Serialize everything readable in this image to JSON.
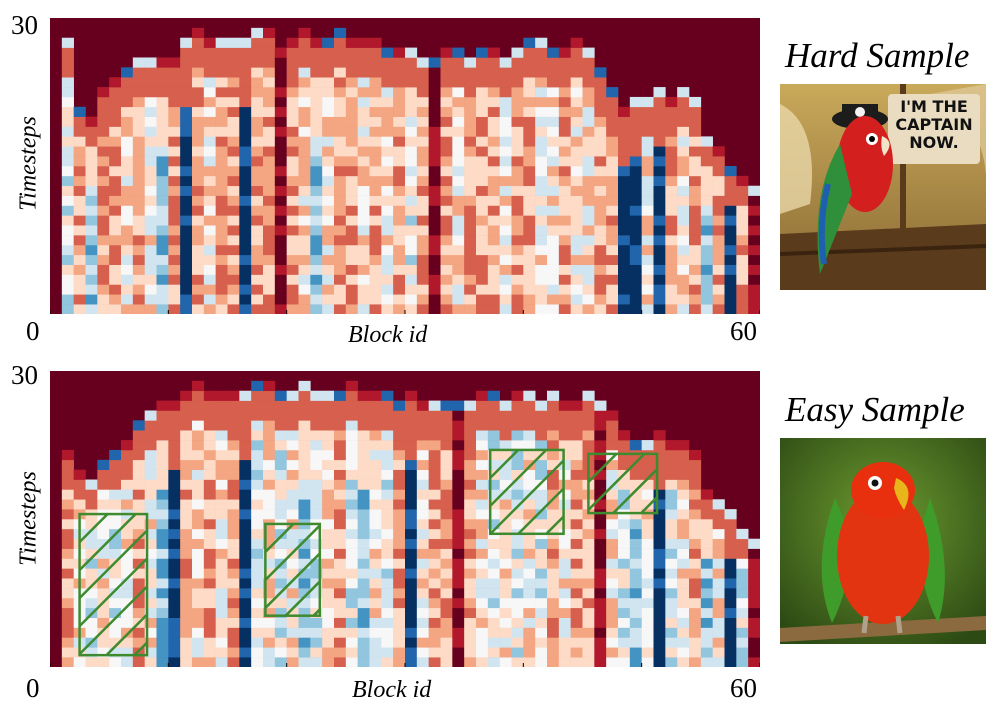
{
  "chart_data": [
    {
      "type": "heatmap",
      "title": "",
      "xlabel": "Block id",
      "ylabel": "Timesteps",
      "x_tick_labels": {
        "min": "0",
        "max": "60"
      },
      "y_tick_labels": {
        "max": "30"
      },
      "xlim": [
        0,
        60
      ],
      "ylim": [
        0,
        30
      ],
      "colormap": [
        "#053061",
        "#2166ac",
        "#4393c3",
        "#92c5de",
        "#d1e5f0",
        "#f7f7f7",
        "#fddbc7",
        "#f4a582",
        "#d6604d",
        "#b2182b",
        "#67001f"
      ],
      "columns": [
        {
          "x": 1,
          "top": 27,
          "profile": "cool"
        },
        {
          "x": 2,
          "top": 20,
          "profile": "warm"
        },
        {
          "x": 3,
          "top": 19,
          "profile": "blue"
        },
        {
          "x": 4,
          "top": 22,
          "profile": "warm"
        },
        {
          "x": 5,
          "top": 23,
          "profile": "warm"
        },
        {
          "x": 6,
          "top": 24,
          "profile": "pale"
        },
        {
          "x": 7,
          "top": 25,
          "profile": "warm"
        },
        {
          "x": 8,
          "top": 25,
          "profile": "pale"
        },
        {
          "x": 9,
          "top": 25,
          "profile": "blue"
        },
        {
          "x": 10,
          "top": 25,
          "profile": "warm"
        },
        {
          "x": 11,
          "top": 27,
          "profile": "dark"
        },
        {
          "x": 12,
          "top": 28,
          "profile": "warm"
        },
        {
          "x": 13,
          "top": 27,
          "profile": "pale"
        },
        {
          "x": 14,
          "top": 27,
          "profile": "warm"
        },
        {
          "x": 15,
          "top": 27,
          "profile": "warm"
        },
        {
          "x": 16,
          "top": 27,
          "profile": "dark"
        },
        {
          "x": 17,
          "top": 28,
          "profile": "warm"
        },
        {
          "x": 18,
          "top": 28,
          "profile": "warm"
        },
        {
          "x": 19,
          "top": 26,
          "profile": "red"
        },
        {
          "x": 20,
          "top": 27,
          "profile": "warm"
        },
        {
          "x": 21,
          "top": 28,
          "profile": "pale"
        },
        {
          "x": 22,
          "top": 27,
          "profile": "blue"
        },
        {
          "x": 23,
          "top": 27,
          "profile": "pale"
        },
        {
          "x": 24,
          "top": 28,
          "profile": "warm"
        },
        {
          "x": 25,
          "top": 27,
          "profile": "warm"
        },
        {
          "x": 26,
          "top": 27,
          "profile": "pale"
        },
        {
          "x": 27,
          "top": 27,
          "profile": "warm"
        },
        {
          "x": 28,
          "top": 26,
          "profile": "pale"
        },
        {
          "x": 29,
          "top": 26,
          "profile": "warm"
        },
        {
          "x": 30,
          "top": 26,
          "profile": "cool"
        },
        {
          "x": 31,
          "top": 25,
          "profile": "warm"
        },
        {
          "x": 32,
          "top": 25,
          "profile": "red"
        },
        {
          "x": 33,
          "top": 26,
          "profile": "warm"
        },
        {
          "x": 34,
          "top": 26,
          "profile": "pale"
        },
        {
          "x": 35,
          "top": 25,
          "profile": "warm"
        },
        {
          "x": 36,
          "top": 26,
          "profile": "warm"
        },
        {
          "x": 37,
          "top": 26,
          "profile": "warm"
        },
        {
          "x": 38,
          "top": 25,
          "profile": "pale"
        },
        {
          "x": 39,
          "top": 26,
          "profile": "warm"
        },
        {
          "x": 40,
          "top": 27,
          "profile": "warm"
        },
        {
          "x": 41,
          "top": 27,
          "profile": "pale"
        },
        {
          "x": 42,
          "top": 26,
          "profile": "pale"
        },
        {
          "x": 43,
          "top": 26,
          "profile": "warm"
        },
        {
          "x": 44,
          "top": 27,
          "profile": "pale"
        },
        {
          "x": 45,
          "top": 26,
          "profile": "pale"
        },
        {
          "x": 46,
          "top": 24,
          "profile": "warm"
        },
        {
          "x": 47,
          "top": 22,
          "profile": "warm"
        },
        {
          "x": 48,
          "top": 20,
          "profile": "dark"
        },
        {
          "x": 49,
          "top": 21,
          "profile": "dark"
        },
        {
          "x": 50,
          "top": 21,
          "profile": "pale"
        },
        {
          "x": 51,
          "top": 22,
          "profile": "dark"
        },
        {
          "x": 52,
          "top": 21,
          "profile": "warm"
        },
        {
          "x": 53,
          "top": 22,
          "profile": "pale"
        },
        {
          "x": 54,
          "top": 21,
          "profile": "warm"
        },
        {
          "x": 55,
          "top": 17,
          "profile": "blue"
        },
        {
          "x": 56,
          "top": 16,
          "profile": "warm"
        },
        {
          "x": 57,
          "top": 14,
          "profile": "dark"
        },
        {
          "x": 58,
          "top": 13,
          "profile": "warm"
        },
        {
          "x": 59,
          "top": 12,
          "profile": "red"
        }
      ],
      "highlight_regions": []
    },
    {
      "type": "heatmap",
      "title": "",
      "xlabel": "Block id",
      "ylabel": "Timesteps",
      "x_tick_labels": {
        "min": "0",
        "max": "60"
      },
      "y_tick_labels": {
        "max": "30"
      },
      "xlim": [
        0,
        60
      ],
      "ylim": [
        0,
        30
      ],
      "colormap": [
        "#053061",
        "#2166ac",
        "#4393c3",
        "#92c5de",
        "#d1e5f0",
        "#f7f7f7",
        "#fddbc7",
        "#f4a582",
        "#d6604d",
        "#b2182b",
        "#67001f"
      ],
      "columns": [
        {
          "x": 1,
          "top": 21,
          "profile": "warm"
        },
        {
          "x": 2,
          "top": 19,
          "profile": "pale"
        },
        {
          "x": 3,
          "top": 18,
          "profile": "cool"
        },
        {
          "x": 4,
          "top": 20,
          "profile": "pale"
        },
        {
          "x": 5,
          "top": 21,
          "profile": "cool"
        },
        {
          "x": 6,
          "top": 22,
          "profile": "pale"
        },
        {
          "x": 7,
          "top": 24,
          "profile": "warm"
        },
        {
          "x": 8,
          "top": 25,
          "profile": "pale"
        },
        {
          "x": 9,
          "top": 26,
          "profile": "blue"
        },
        {
          "x": 10,
          "top": 26,
          "profile": "dark"
        },
        {
          "x": 11,
          "top": 27,
          "profile": "warm"
        },
        {
          "x": 12,
          "top": 28,
          "profile": "pale"
        },
        {
          "x": 13,
          "top": 27,
          "profile": "warm"
        },
        {
          "x": 14,
          "top": 27,
          "profile": "pale"
        },
        {
          "x": 15,
          "top": 27,
          "profile": "warm"
        },
        {
          "x": 16,
          "top": 27,
          "profile": "dark"
        },
        {
          "x": 17,
          "top": 28,
          "profile": "cool"
        },
        {
          "x": 18,
          "top": 28,
          "profile": "pale"
        },
        {
          "x": 19,
          "top": 27,
          "profile": "cool"
        },
        {
          "x": 20,
          "top": 27,
          "profile": "pale"
        },
        {
          "x": 21,
          "top": 28,
          "profile": "blue"
        },
        {
          "x": 22,
          "top": 27,
          "profile": "cool"
        },
        {
          "x": 23,
          "top": 27,
          "profile": "pale"
        },
        {
          "x": 24,
          "top": 27,
          "profile": "warm"
        },
        {
          "x": 25,
          "top": 28,
          "profile": "cool"
        },
        {
          "x": 26,
          "top": 27,
          "profile": "blue"
        },
        {
          "x": 27,
          "top": 27,
          "profile": "pale"
        },
        {
          "x": 28,
          "top": 27,
          "profile": "cool"
        },
        {
          "x": 29,
          "top": 26,
          "profile": "warm"
        },
        {
          "x": 30,
          "top": 27,
          "profile": "dark"
        },
        {
          "x": 31,
          "top": 26,
          "profile": "pale"
        },
        {
          "x": 32,
          "top": 26,
          "profile": "warm"
        },
        {
          "x": 33,
          "top": 26,
          "profile": "warm"
        },
        {
          "x": 34,
          "top": 26,
          "profile": "red"
        },
        {
          "x": 35,
          "top": 26,
          "profile": "warm"
        },
        {
          "x": 36,
          "top": 27,
          "profile": "pale"
        },
        {
          "x": 37,
          "top": 27,
          "profile": "cool"
        },
        {
          "x": 38,
          "top": 26,
          "profile": "pale"
        },
        {
          "x": 39,
          "top": 27,
          "profile": "cool"
        },
        {
          "x": 40,
          "top": 27,
          "profile": "pale"
        },
        {
          "x": 41,
          "top": 26,
          "profile": "cool"
        },
        {
          "x": 42,
          "top": 27,
          "profile": "warm"
        },
        {
          "x": 43,
          "top": 26,
          "profile": "pale"
        },
        {
          "x": 44,
          "top": 26,
          "profile": "warm"
        },
        {
          "x": 45,
          "top": 27,
          "profile": "warm"
        },
        {
          "x": 46,
          "top": 26,
          "profile": "red"
        },
        {
          "x": 47,
          "top": 25,
          "profile": "pale"
        },
        {
          "x": 48,
          "top": 23,
          "profile": "cool"
        },
        {
          "x": 49,
          "top": 22,
          "profile": "blue"
        },
        {
          "x": 50,
          "top": 22,
          "profile": "pale"
        },
        {
          "x": 51,
          "top": 23,
          "profile": "dark"
        },
        {
          "x": 52,
          "top": 22,
          "profile": "cool"
        },
        {
          "x": 53,
          "top": 22,
          "profile": "pale"
        },
        {
          "x": 54,
          "top": 21,
          "profile": "warm"
        },
        {
          "x": 55,
          "top": 17,
          "profile": "blue"
        },
        {
          "x": 56,
          "top": 16,
          "profile": "pale"
        },
        {
          "x": 57,
          "top": 15,
          "profile": "dark"
        },
        {
          "x": 58,
          "top": 13,
          "profile": "cool"
        },
        {
          "x": 59,
          "top": 12,
          "profile": "red"
        }
      ],
      "highlight_regions": [
        {
          "x0": 2.5,
          "x1": 8.2,
          "y0": 1.2,
          "y1": 15.5
        },
        {
          "x0": 18.2,
          "x1": 22.8,
          "y0": 5.2,
          "y1": 14.5
        },
        {
          "x0": 37.2,
          "x1": 43.4,
          "y0": 13.5,
          "y1": 22.0
        },
        {
          "x0": 45.5,
          "x1": 51.3,
          "y0": 15.6,
          "y1": 21.6
        }
      ]
    }
  ],
  "labels": {
    "hard_sample": "Hard Sample",
    "easy_sample": "Easy Sample",
    "poster_line1": "I'M THE",
    "poster_line2": "CAPTAIN",
    "poster_line3": "NOW."
  },
  "colors": {
    "highlight_stroke": "#3e8a2f",
    "bg_dark": "#67001f"
  }
}
